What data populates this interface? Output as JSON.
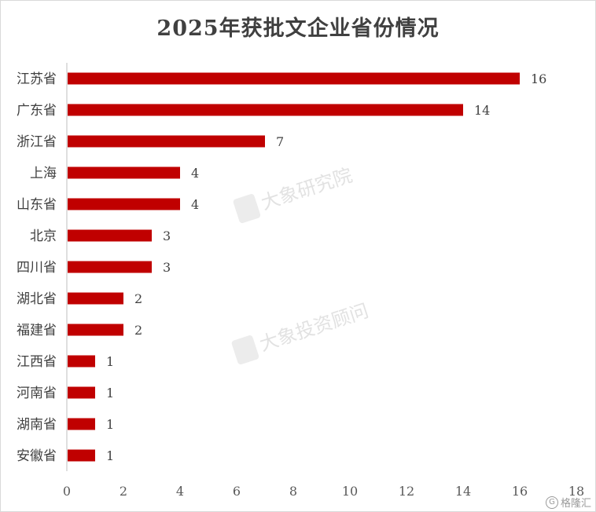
{
  "chart_data": {
    "type": "bar",
    "orientation": "horizontal",
    "title": "2025年获批文企业省份情况",
    "categories": [
      "江苏省",
      "广东省",
      "浙江省",
      "上海",
      "山东省",
      "北京",
      "四川省",
      "湖北省",
      "福建省",
      "江西省",
      "河南省",
      "湖南省",
      "安徽省"
    ],
    "values": [
      16,
      14,
      7,
      4,
      4,
      3,
      3,
      2,
      2,
      1,
      1,
      1,
      1
    ],
    "xlim": [
      0,
      18
    ],
    "xticks": [
      0,
      2,
      4,
      6,
      8,
      10,
      12,
      14,
      16,
      18
    ],
    "grid": false,
    "legend": "none",
    "data_labels": true,
    "bar_color": "#c00000"
  },
  "watermarks": [
    "大象研究院",
    "大象投资顾问"
  ],
  "corner_logo": "格隆汇"
}
